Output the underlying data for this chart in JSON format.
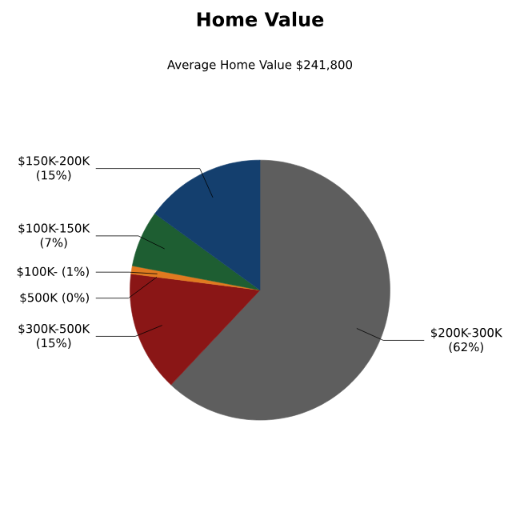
{
  "chart_data": {
    "type": "pie",
    "title": "Home Value",
    "subtitle": "Average Home Value  $241,800",
    "categories": [
      "$200K-300K",
      "$300K-500K",
      "$500K",
      "$100K-",
      "$100K-150K",
      "$150K-200K"
    ],
    "values": [
      62,
      15,
      0,
      1,
      7,
      15
    ],
    "value_labels": [
      "(62%)",
      "(15%)",
      "(0%)",
      "(1%)",
      "(7%)",
      "(15%)"
    ],
    "colors": [
      "#5e5e5e",
      "#8a1616",
      "#d8c020",
      "#e07a20",
      "#1e5e32",
      "#143f6e"
    ]
  }
}
